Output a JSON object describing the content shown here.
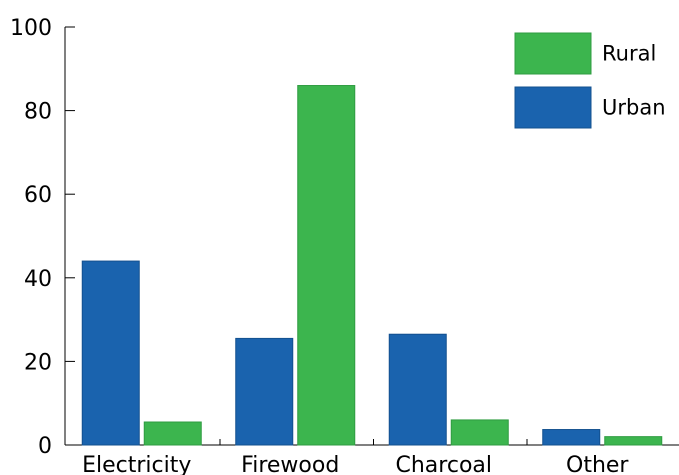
{
  "chart_data": {
    "type": "bar",
    "title": "",
    "xlabel": "",
    "ylabel": "",
    "categories": [
      "Electricity",
      "Firewood",
      "Charcoal",
      "Other"
    ],
    "series": [
      {
        "name": "Urban",
        "color": "#1a63ae",
        "values": [
          44,
          25.5,
          26.5,
          3.7
        ]
      },
      {
        "name": "Rural",
        "color": "#3cb54e",
        "values": [
          5.5,
          86,
          6,
          2
        ]
      }
    ],
    "ylim": [
      0,
      100
    ],
    "yticks": [
      0,
      20,
      40,
      60,
      80,
      100
    ],
    "grid": false,
    "legend": {
      "placement": "top-right",
      "order": [
        "Rural",
        "Urban"
      ]
    }
  }
}
